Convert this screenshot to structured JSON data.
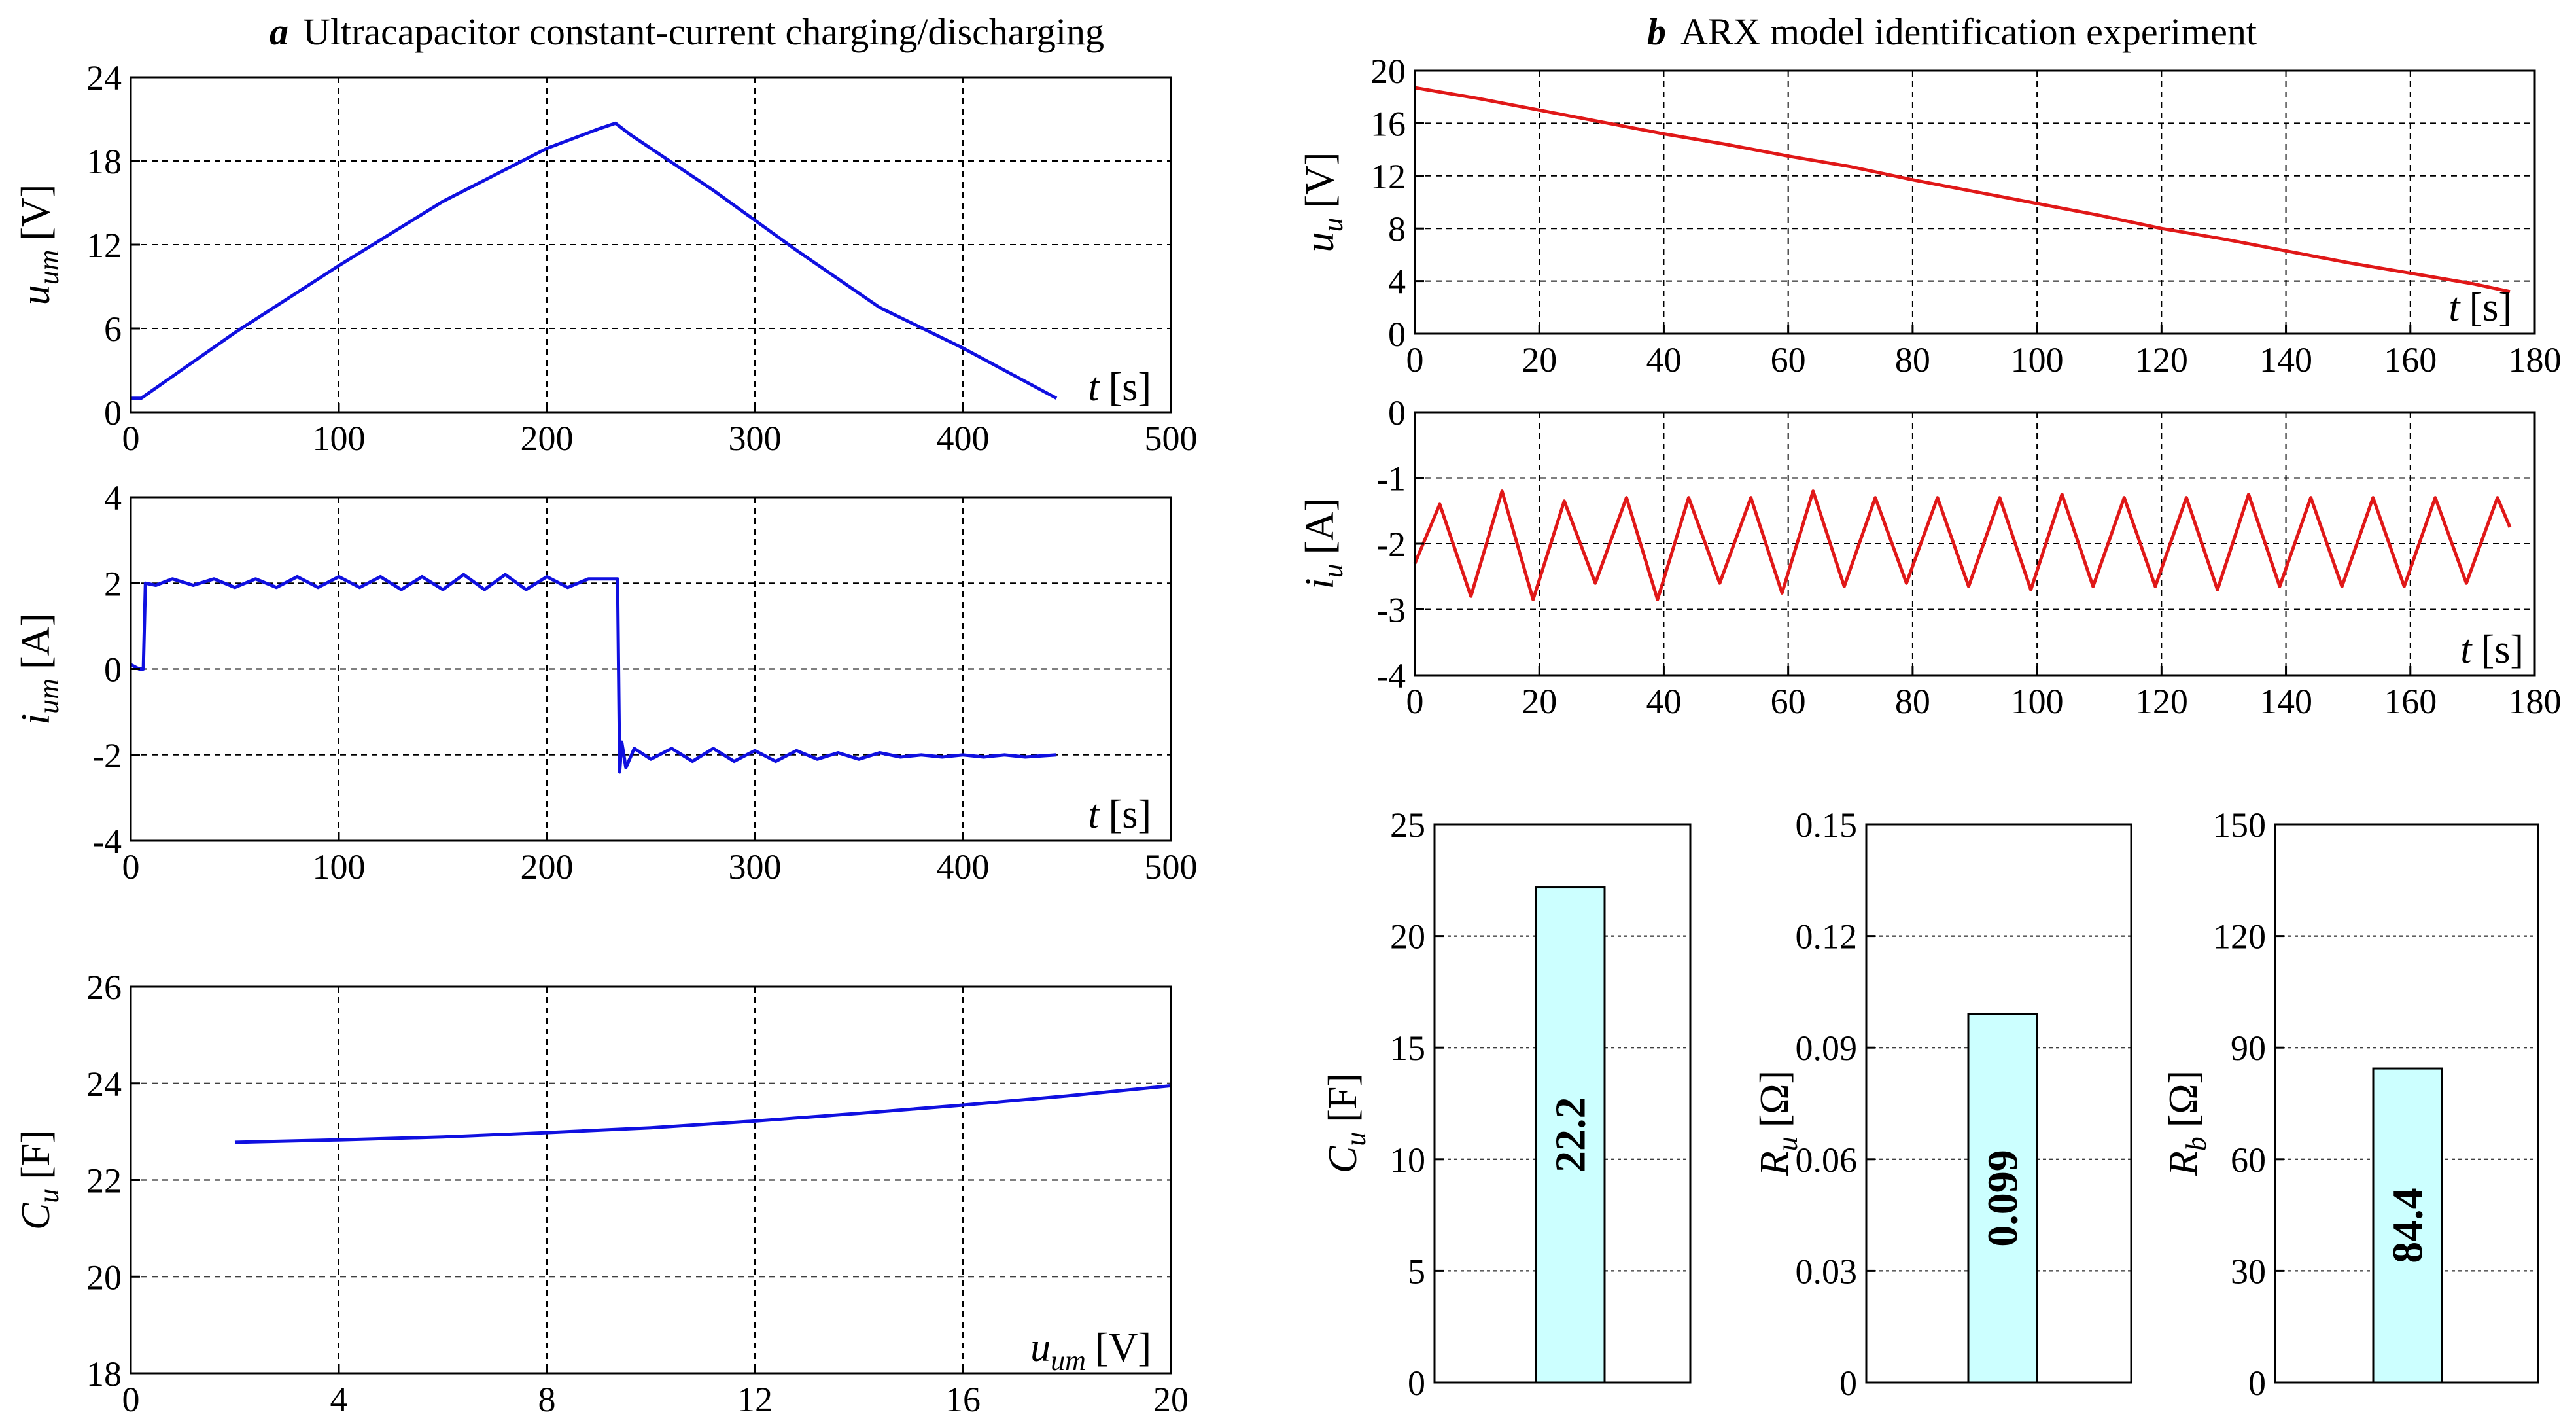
{
  "panel_titles": {
    "a_letter": "a",
    "a_text": "Ultracapacitor constant-current charging/discharging",
    "b_letter": "b",
    "b_text": "ARX model identification experiment"
  },
  "colors": {
    "blue": "#1010e0",
    "red": "#e01818",
    "bar_fill": "#ccffff"
  },
  "chart_data": [
    {
      "id": "a1",
      "type": "line",
      "xlim": [
        0,
        500
      ],
      "ylim": [
        0,
        24
      ],
      "grid": true,
      "xticks": [
        0,
        100,
        200,
        300,
        400,
        500
      ],
      "yticks": [
        0,
        6,
        12,
        18,
        24
      ],
      "ylabel_sym": "u",
      "ylabel_sub": "um",
      "ylabel_unit": "[V]",
      "xlabel_sym": "t",
      "xlabel_sub": "",
      "xlabel_unit": "[s]",
      "series": [
        {
          "color": "#1010e0",
          "x": [
            0,
            5,
            50,
            100,
            150,
            200,
            225,
            233,
            240,
            280,
            320,
            360,
            400,
            445
          ],
          "y": [
            1,
            1,
            5.7,
            10.5,
            15.1,
            18.9,
            20.3,
            20.7,
            19.9,
            15.9,
            11.6,
            7.5,
            4.6,
            1.0
          ]
        }
      ]
    },
    {
      "id": "a2",
      "type": "line",
      "xlim": [
        0,
        500
      ],
      "ylim": [
        -4,
        4
      ],
      "grid": true,
      "xticks": [
        0,
        100,
        200,
        300,
        400,
        500
      ],
      "yticks": [
        -4,
        -2,
        0,
        2,
        4
      ],
      "ylabel_sym": "i",
      "ylabel_sub": "um",
      "ylabel_unit": "[A]",
      "xlabel_sym": "t",
      "xlabel_sub": "",
      "xlabel_unit": "[s]",
      "series": [
        {
          "color": "#1010e0",
          "x": [
            0,
            4,
            5,
            6,
            7,
            12,
            20,
            30,
            40,
            50,
            60,
            70,
            80,
            90,
            100,
            110,
            120,
            130,
            140,
            150,
            160,
            170,
            180,
            190,
            200,
            210,
            220,
            230,
            233,
            234,
            235,
            236,
            238,
            242,
            250,
            260,
            270,
            280,
            290,
            300,
            310,
            320,
            330,
            340,
            350,
            360,
            370,
            380,
            390,
            400,
            410,
            420,
            430,
            445
          ],
          "y": [
            0.1,
            0,
            0,
            0,
            2.0,
            1.95,
            2.1,
            1.95,
            2.1,
            1.9,
            2.1,
            1.9,
            2.15,
            1.9,
            2.15,
            1.9,
            2.15,
            1.85,
            2.15,
            1.85,
            2.2,
            1.85,
            2.2,
            1.85,
            2.15,
            1.9,
            2.1,
            2.1,
            2.1,
            2.1,
            -2.4,
            -1.7,
            -2.3,
            -1.85,
            -2.1,
            -1.85,
            -2.15,
            -1.85,
            -2.15,
            -1.9,
            -2.15,
            -1.9,
            -2.1,
            -1.95,
            -2.1,
            -1.95,
            -2.05,
            -2.0,
            -2.05,
            -2.0,
            -2.05,
            -2.0,
            -2.05,
            -2.0
          ]
        }
      ]
    },
    {
      "id": "a3",
      "type": "line",
      "xlim": [
        0,
        20
      ],
      "ylim": [
        18,
        26
      ],
      "grid": true,
      "xticks": [
        0,
        4,
        8,
        12,
        16,
        20
      ],
      "yticks": [
        18,
        20,
        22,
        24,
        26
      ],
      "ylabel_sym": "C",
      "ylabel_sub": "u",
      "ylabel_unit": "[F]",
      "xlabel_sym": "u",
      "xlabel_sub": "um",
      "xlabel_unit": "[V]",
      "series": [
        {
          "color": "#1010e0",
          "x": [
            2,
            4,
            6,
            8,
            10,
            12,
            14,
            16,
            18,
            20
          ],
          "y": [
            22.78,
            22.83,
            22.89,
            22.98,
            23.08,
            23.22,
            23.38,
            23.55,
            23.74,
            23.95
          ]
        }
      ]
    },
    {
      "id": "b1",
      "type": "line",
      "xlim": [
        0,
        180
      ],
      "ylim": [
        0,
        20
      ],
      "grid": true,
      "xticks": [
        0,
        20,
        40,
        60,
        80,
        100,
        120,
        140,
        160,
        180
      ],
      "yticks": [
        0,
        4,
        8,
        12,
        16,
        20
      ],
      "ylabel_sym": "u",
      "ylabel_sub": "u",
      "ylabel_unit": "[V]",
      "xlabel_sym": "t",
      "xlabel_sub": "",
      "xlabel_unit": "[s]",
      "series": [
        {
          "color": "#e01818",
          "x": [
            0,
            10,
            20,
            30,
            40,
            50,
            60,
            70,
            80,
            90,
            100,
            110,
            120,
            130,
            140,
            150,
            160,
            170,
            176
          ],
          "y": [
            18.7,
            17.9,
            17.0,
            16.1,
            15.2,
            14.4,
            13.5,
            12.7,
            11.7,
            10.8,
            9.9,
            9.0,
            8.0,
            7.2,
            6.3,
            5.4,
            4.6,
            3.8,
            3.2
          ]
        }
      ]
    },
    {
      "id": "b2",
      "type": "line",
      "xlim": [
        0,
        180
      ],
      "ylim": [
        -4,
        0
      ],
      "grid": true,
      "xticks": [
        0,
        20,
        40,
        60,
        80,
        100,
        120,
        140,
        160,
        180
      ],
      "yticks": [
        -4,
        -3,
        -2,
        -1,
        0
      ],
      "ylabel_sym": "i",
      "ylabel_sub": "u",
      "ylabel_unit": "[A]",
      "xlabel_sym": "t",
      "xlabel_sub": "",
      "xlabel_unit": "[s]",
      "series": [
        {
          "color": "#e01818",
          "x": [
            0,
            4,
            9,
            14,
            19,
            24,
            29,
            34,
            39,
            44,
            49,
            54,
            59,
            64,
            69,
            74,
            79,
            84,
            89,
            94,
            99,
            104,
            109,
            114,
            119,
            124,
            129,
            134,
            139,
            144,
            149,
            154,
            159,
            164,
            169,
            174,
            176
          ],
          "y": [
            -2.3,
            -1.4,
            -2.8,
            -1.2,
            -2.85,
            -1.35,
            -2.6,
            -1.3,
            -2.85,
            -1.3,
            -2.6,
            -1.3,
            -2.75,
            -1.2,
            -2.65,
            -1.3,
            -2.6,
            -1.3,
            -2.65,
            -1.3,
            -2.7,
            -1.25,
            -2.65,
            -1.3,
            -2.65,
            -1.3,
            -2.7,
            -1.25,
            -2.65,
            -1.3,
            -2.65,
            -1.3,
            -2.65,
            -1.3,
            -2.6,
            -1.3,
            -1.75
          ]
        }
      ]
    },
    {
      "id": "b3",
      "type": "bar",
      "ylim": [
        0,
        25
      ],
      "grid": true,
      "yticks": [
        0,
        5,
        10,
        15,
        20,
        25
      ],
      "tick_labels": [
        "0",
        "5",
        "10",
        "15",
        "20",
        "25"
      ],
      "ylabel_sym": "C",
      "ylabel_sub": "u",
      "ylabel_unit": "[F]",
      "values": [
        22.2
      ],
      "data_label": "22.2"
    },
    {
      "id": "b4",
      "type": "bar",
      "ylim": [
        0,
        0.15
      ],
      "grid": true,
      "yticks": [
        0,
        0.03,
        0.06,
        0.09,
        0.12,
        0.15
      ],
      "tick_labels": [
        "0",
        "0.03",
        "0.06",
        "0.09",
        "0.12",
        "0.15"
      ],
      "ylabel_sym": "R",
      "ylabel_sub": "u",
      "ylabel_unit": "[Ω]",
      "values": [
        0.099
      ],
      "data_label": "0.099"
    },
    {
      "id": "b5",
      "type": "bar",
      "ylim": [
        0,
        150
      ],
      "grid": true,
      "yticks": [
        0,
        30,
        60,
        90,
        120,
        150
      ],
      "tick_labels": [
        "0",
        "30",
        "60",
        "90",
        "120",
        "150"
      ],
      "ylabel_sym": "R",
      "ylabel_sub": "b",
      "ylabel_unit": "[Ω]",
      "values": [
        84.4
      ],
      "data_label": "84.4"
    }
  ]
}
